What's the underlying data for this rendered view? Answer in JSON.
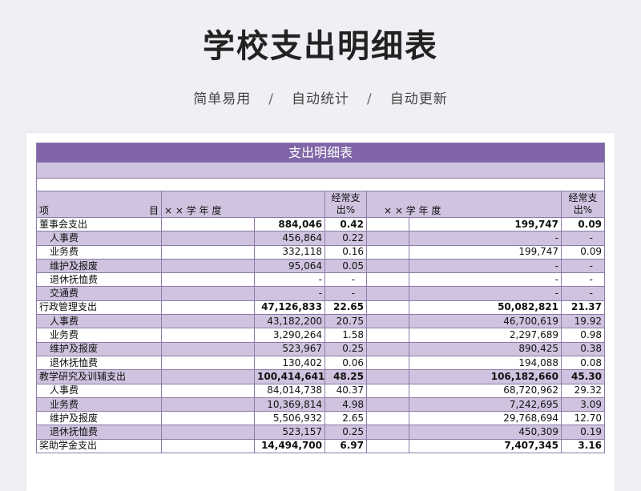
{
  "page_title": "学校支出明细表",
  "subtitle": {
    "items": [
      "简单易用",
      "自动统计",
      "自动更新"
    ],
    "separator": "/"
  },
  "table": {
    "banner": "支出明细表",
    "header": {
      "item_left": "项",
      "item_right": "目",
      "year1": "× × 学 年 度",
      "pct1": "经常支出%",
      "year2": "× × 学 年 度",
      "pct2": "经常支出%"
    },
    "rows": [
      {
        "label": "董事会支出",
        "main": true,
        "v1": "884,046",
        "p1": "0.42",
        "v2": "199,747",
        "p2": "0.09"
      },
      {
        "label": "人事费",
        "main": false,
        "v1": "456,864",
        "p1": "0.22",
        "v2": "-",
        "p2": "-"
      },
      {
        "label": "业务费",
        "main": false,
        "v1": "332,118",
        "p1": "0.16",
        "v2": "199,747",
        "p2": "0.09"
      },
      {
        "label": "维护及报废",
        "main": false,
        "v1": "95,064",
        "p1": "0.05",
        "v2": "-",
        "p2": "-"
      },
      {
        "label": "退休抚恤费",
        "main": false,
        "v1": "-",
        "p1": "-",
        "v2": "-",
        "p2": "-"
      },
      {
        "label": "交通费",
        "main": false,
        "v1": "-",
        "p1": "-",
        "v2": "-",
        "p2": "-"
      },
      {
        "label": "行政管理支出",
        "main": true,
        "v1": "47,126,833",
        "p1": "22.65",
        "v2": "50,082,821",
        "p2": "21.37"
      },
      {
        "label": "人事费",
        "main": false,
        "v1": "43,182,200",
        "p1": "20.75",
        "v2": "46,700,619",
        "p2": "19.92"
      },
      {
        "label": "业务费",
        "main": false,
        "v1": "3,290,264",
        "p1": "1.58",
        "v2": "2,297,689",
        "p2": "0.98"
      },
      {
        "label": "维护及报废",
        "main": false,
        "v1": "523,967",
        "p1": "0.25",
        "v2": "890,425",
        "p2": "0.38"
      },
      {
        "label": "退休抚恤费",
        "main": false,
        "v1": "130,402",
        "p1": "0.06",
        "v2": "194,088",
        "p2": "0.08"
      },
      {
        "label": "教学研究及训辅支出",
        "main": true,
        "v1": "100,414,641",
        "p1": "48.25",
        "v2": "106,182,660",
        "p2": "45.30"
      },
      {
        "label": "人事费",
        "main": false,
        "v1": "84,014,738",
        "p1": "40.37",
        "v2": "68,720,962",
        "p2": "29.32"
      },
      {
        "label": "业务费",
        "main": false,
        "v1": "10,369,814",
        "p1": "4.98",
        "v2": "7,242,695",
        "p2": "3.09"
      },
      {
        "label": "维护及报废",
        "main": false,
        "v1": "5,506,932",
        "p1": "2.65",
        "v2": "29,768,694",
        "p2": "12.70"
      },
      {
        "label": "退休抚恤费",
        "main": false,
        "v1": "523,157",
        "p1": "0.25",
        "v2": "450,309",
        "p2": "0.19"
      },
      {
        "label": "奖助学金支出",
        "main": true,
        "v1": "14,494,700",
        "p1": "6.97",
        "v2": "7,407,345",
        "p2": "3.16"
      }
    ]
  },
  "colors": {
    "banner": "#8066a8",
    "band": "#cfc3df",
    "grid": "#8c7aa8",
    "background": "#eef0f4"
  }
}
